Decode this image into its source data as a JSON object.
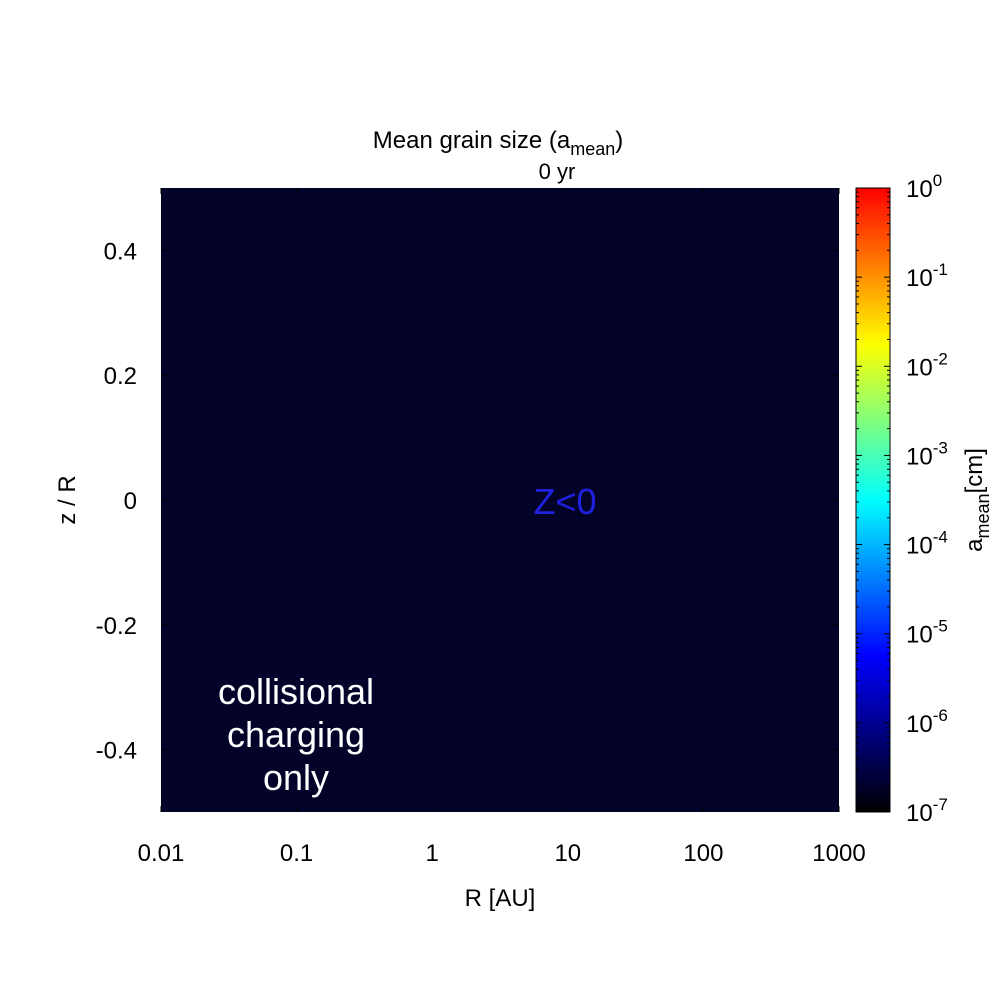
{
  "chart_data": {
    "type": "heatmap",
    "title": "Mean grain size (a",
    "title_sub": "mean",
    "title_end": ")",
    "subtitle": "0 yr",
    "xlabel": "R [AU]",
    "ylabel": "z / R",
    "xscale": "log",
    "xlim": [
      0.01,
      1000
    ],
    "ylim": [
      -0.5,
      0.5
    ],
    "x_ticks": [
      0.01,
      0.1,
      1,
      10,
      100,
      1000
    ],
    "x_tick_labels": [
      "0.01",
      "0.1",
      "1",
      "10",
      "100",
      "1000"
    ],
    "y_ticks": [
      0.4,
      0.2,
      0,
      -0.2,
      -0.4
    ],
    "y_tick_labels": [
      "0.4",
      "0.2",
      "0",
      "-0.2",
      "-0.4"
    ],
    "field_value_cm": 1e-07,
    "field_color": "#03032a",
    "colorbar": {
      "label_main": "a",
      "label_sub": "mean",
      "label_unit": "[cm]",
      "scale": "log",
      "range": [
        1e-07,
        1
      ],
      "tick_base": "10",
      "tick_exponents": [
        "0",
        "-1",
        "-2",
        "-3",
        "-4",
        "-5",
        "-6",
        "-7"
      ],
      "colormap": [
        "#000000",
        "#00007f",
        "#0000ff",
        "#007fff",
        "#00ffff",
        "#7fff7f",
        "#ffff00",
        "#ff7f00",
        "#ff0000"
      ]
    },
    "annotations": [
      {
        "text": "Z<0",
        "color": "#2020e0"
      },
      {
        "lines": [
          "collisional",
          "charging",
          "only"
        ],
        "color": "#ffffff"
      }
    ],
    "grid": false
  }
}
